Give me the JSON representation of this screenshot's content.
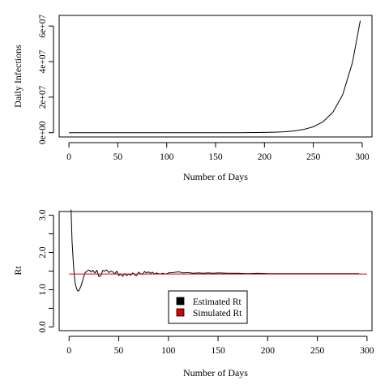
{
  "chart_data": [
    {
      "type": "line",
      "title": "",
      "xlabel": "Number of Days",
      "ylabel": "Daily Infections",
      "xlim": [
        -10,
        310
      ],
      "ylim": [
        -2400000,
        66000000
      ],
      "x_ticks": [
        0,
        50,
        100,
        150,
        200,
        250,
        300
      ],
      "x_tick_labels": [
        "0",
        "50",
        "100",
        "150",
        "200",
        "250",
        "300"
      ],
      "y_ticks": [
        0,
        20000000,
        40000000,
        60000000
      ],
      "y_tick_labels": [
        "0e+00",
        "2e+07",
        "4e+07",
        "6e+07"
      ],
      "grid": false,
      "series": [
        {
          "color": "#000000",
          "x": [
            0,
            25,
            50,
            75,
            100,
            125,
            150,
            175,
            200,
            210,
            220,
            230,
            240,
            250,
            260,
            270,
            280,
            290,
            298
          ],
          "y": [
            0,
            0,
            0,
            0,
            0,
            0,
            0,
            10000,
            150000,
            280000,
            520000,
            980000,
            1800000,
            3300000,
            6200000,
            11500000,
            21300000,
            39400000,
            63000000
          ]
        }
      ]
    },
    {
      "type": "line",
      "title": "",
      "xlabel": "Number of Days",
      "ylabel": "Rt",
      "xlim": [
        -10,
        305
      ],
      "ylim": [
        -0.1,
        3.1
      ],
      "x_ticks": [
        0,
        50,
        100,
        150,
        200,
        250,
        300
      ],
      "x_tick_labels": [
        "0",
        "50",
        "100",
        "150",
        "200",
        "250",
        "300"
      ],
      "y_ticks": [
        0,
        0.5,
        1,
        1.5,
        2,
        2.5,
        3
      ],
      "y_tick_labels": [
        "0.0",
        "",
        "1.0",
        "",
        "2.0",
        "",
        "3.0"
      ],
      "grid": false,
      "legend": {
        "position": "center-bottom",
        "entries": [
          {
            "label": "Estimated Rt",
            "color": "#000000"
          },
          {
            "label": "Simulated Rt",
            "color": "#dd0000"
          }
        ]
      },
      "series": [
        {
          "name": "Estimated Rt",
          "color": "#000000",
          "x": [
            2,
            3,
            4,
            5,
            6,
            7,
            8,
            9,
            10,
            12,
            14,
            16,
            18,
            20,
            22,
            24,
            26,
            28,
            30,
            32,
            34,
            36,
            38,
            40,
            42,
            44,
            46,
            48,
            50,
            52,
            54,
            56,
            58,
            60,
            62,
            64,
            66,
            68,
            70,
            72,
            74,
            76,
            78,
            80,
            82,
            84,
            86,
            88,
            90,
            92,
            94,
            96,
            98,
            100,
            105,
            110,
            115,
            120,
            125,
            130,
            135,
            140,
            145,
            150,
            160,
            170,
            180,
            190,
            200,
            220,
            240,
            260,
            280,
            292
          ],
          "y": [
            3.15,
            2.3,
            1.85,
            1.45,
            1.2,
            1.08,
            1.0,
            0.96,
            0.98,
            1.1,
            1.28,
            1.45,
            1.5,
            1.53,
            1.48,
            1.52,
            1.45,
            1.52,
            1.35,
            1.38,
            1.52,
            1.5,
            1.53,
            1.46,
            1.5,
            1.48,
            1.42,
            1.5,
            1.38,
            1.42,
            1.36,
            1.43,
            1.38,
            1.42,
            1.39,
            1.45,
            1.4,
            1.38,
            1.47,
            1.43,
            1.41,
            1.49,
            1.45,
            1.48,
            1.44,
            1.47,
            1.42,
            1.45,
            1.43,
            1.42,
            1.44,
            1.43,
            1.42,
            1.45,
            1.46,
            1.48,
            1.45,
            1.46,
            1.44,
            1.45,
            1.44,
            1.45,
            1.44,
            1.45,
            1.44,
            1.44,
            1.43,
            1.44,
            1.43,
            1.43,
            1.43,
            1.43,
            1.43,
            1.43
          ]
        },
        {
          "name": "Simulated Rt",
          "color": "#dd0000",
          "x": [
            0,
            300
          ],
          "y": [
            1.42,
            1.42
          ]
        }
      ]
    }
  ]
}
